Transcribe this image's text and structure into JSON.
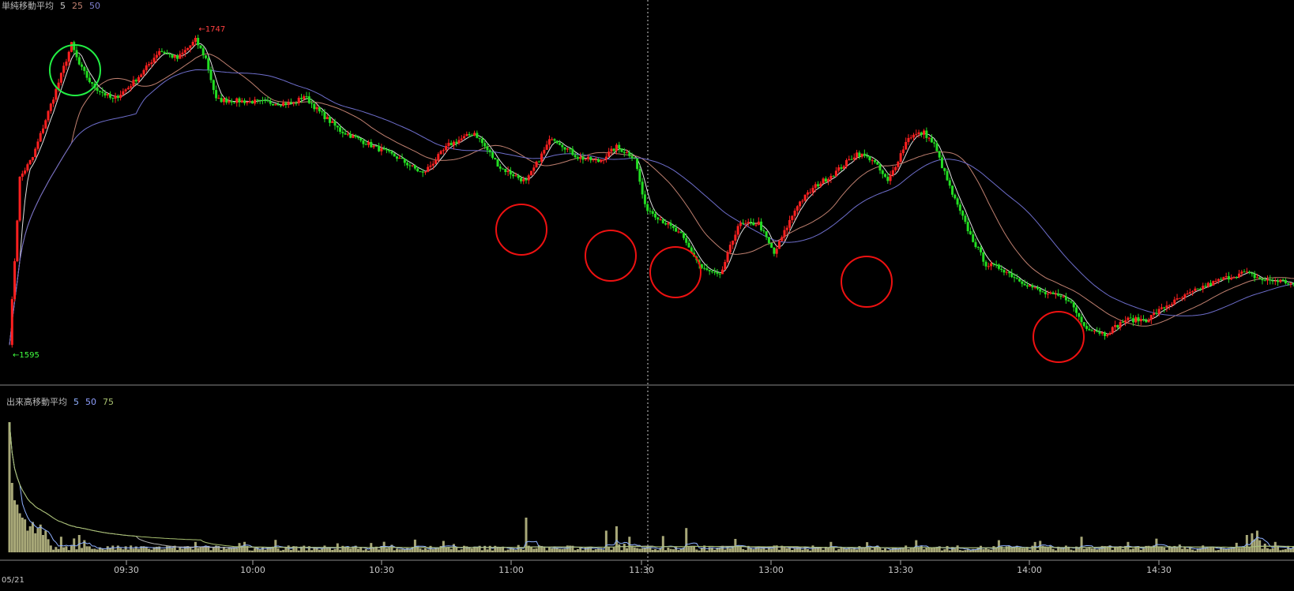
{
  "price_panel": {
    "label": "単純移動平均",
    "ma_periods": [
      "5",
      "25",
      "50"
    ],
    "ma_colors": [
      "#e0e0e0",
      "#c08070",
      "#6e6ecc"
    ]
  },
  "volume_panel": {
    "label": "出来高移動平均",
    "ma_periods": [
      "5",
      "50",
      "75"
    ],
    "ma_colors": [
      "#8fb0ff",
      "#b0b0b0",
      "#a8c070"
    ]
  },
  "colors": {
    "up": "#ff2020",
    "down": "#22dd22",
    "volume_bar": "#a8a878",
    "panel_divider": "#888888",
    "crosshair": "#cfcfcf"
  },
  "date_label": "05/21",
  "markers": {
    "high_label": "←1747",
    "low_label": "←1595"
  },
  "chart_data": {
    "type": "candlestick",
    "date": "05/21",
    "x_ticks": [
      "09:30",
      "10:00",
      "10:30",
      "11:00",
      "11:30",
      "13:00",
      "13:30",
      "14:00",
      "14:30"
    ],
    "price_ylim": [
      1590,
      1755
    ],
    "path": [
      [
        0,
        1600
      ],
      [
        4,
        1680
      ],
      [
        9,
        1690
      ],
      [
        15,
        1712
      ],
      [
        20,
        1730
      ],
      [
        24,
        1745
      ],
      [
        27,
        1735
      ],
      [
        32,
        1725
      ],
      [
        40,
        1718
      ],
      [
        46,
        1724
      ],
      [
        52,
        1732
      ],
      [
        58,
        1742
      ],
      [
        65,
        1738
      ],
      [
        72,
        1747
      ],
      [
        76,
        1738
      ],
      [
        80,
        1718
      ],
      [
        95,
        1717
      ],
      [
        110,
        1716
      ],
      [
        114,
        1720
      ],
      [
        120,
        1712
      ],
      [
        128,
        1703
      ],
      [
        138,
        1697
      ],
      [
        150,
        1690
      ],
      [
        160,
        1682
      ],
      [
        170,
        1696
      ],
      [
        180,
        1702
      ],
      [
        190,
        1685
      ],
      [
        200,
        1678
      ],
      [
        210,
        1700
      ],
      [
        220,
        1690
      ],
      [
        228,
        1688
      ],
      [
        235,
        1695
      ],
      [
        242,
        1690
      ],
      [
        246,
        1666
      ],
      [
        252,
        1660
      ],
      [
        260,
        1652
      ],
      [
        268,
        1636
      ],
      [
        275,
        1632
      ],
      [
        282,
        1657
      ],
      [
        290,
        1658
      ],
      [
        296,
        1643
      ],
      [
        305,
        1667
      ],
      [
        312,
        1676
      ],
      [
        320,
        1683
      ],
      [
        328,
        1692
      ],
      [
        334,
        1689
      ],
      [
        340,
        1678
      ],
      [
        348,
        1700
      ],
      [
        354,
        1702
      ],
      [
        358,
        1696
      ],
      [
        365,
        1672
      ],
      [
        372,
        1652
      ],
      [
        378,
        1638
      ],
      [
        384,
        1636
      ],
      [
        390,
        1631
      ],
      [
        400,
        1624
      ],
      [
        410,
        1621
      ],
      [
        416,
        1608
      ],
      [
        424,
        1604
      ],
      [
        432,
        1611
      ],
      [
        440,
        1611
      ],
      [
        448,
        1618
      ],
      [
        456,
        1623
      ],
      [
        462,
        1627
      ],
      [
        470,
        1631
      ],
      [
        478,
        1634
      ],
      [
        486,
        1630
      ],
      [
        492,
        1630
      ],
      [
        500,
        1627
      ]
    ],
    "volume_data": [
      [
        0,
        150
      ],
      [
        1,
        80
      ],
      [
        2,
        60
      ],
      [
        3,
        55
      ],
      [
        4,
        45
      ],
      [
        5,
        40
      ],
      [
        6,
        38
      ],
      [
        7,
        25
      ],
      [
        8,
        30
      ],
      [
        9,
        35
      ],
      [
        10,
        22
      ],
      [
        11,
        28
      ],
      [
        12,
        32
      ],
      [
        13,
        20
      ],
      [
        14,
        25
      ],
      [
        20,
        18
      ],
      [
        25,
        16
      ],
      [
        27,
        20
      ],
      [
        29,
        14
      ],
      [
        72,
        12
      ],
      [
        200,
        40
      ],
      [
        231,
        25
      ],
      [
        235,
        30
      ],
      [
        240,
        18
      ],
      [
        262,
        28
      ],
      [
        318,
        12
      ],
      [
        351,
        14
      ],
      [
        383,
        14
      ],
      [
        415,
        18
      ],
      [
        433,
        12
      ],
      [
        479,
        20
      ],
      [
        481,
        22
      ],
      [
        482,
        15
      ],
      [
        483,
        25
      ],
      [
        484,
        14
      ],
      [
        486,
        10
      ],
      [
        490,
        12
      ]
    ]
  }
}
